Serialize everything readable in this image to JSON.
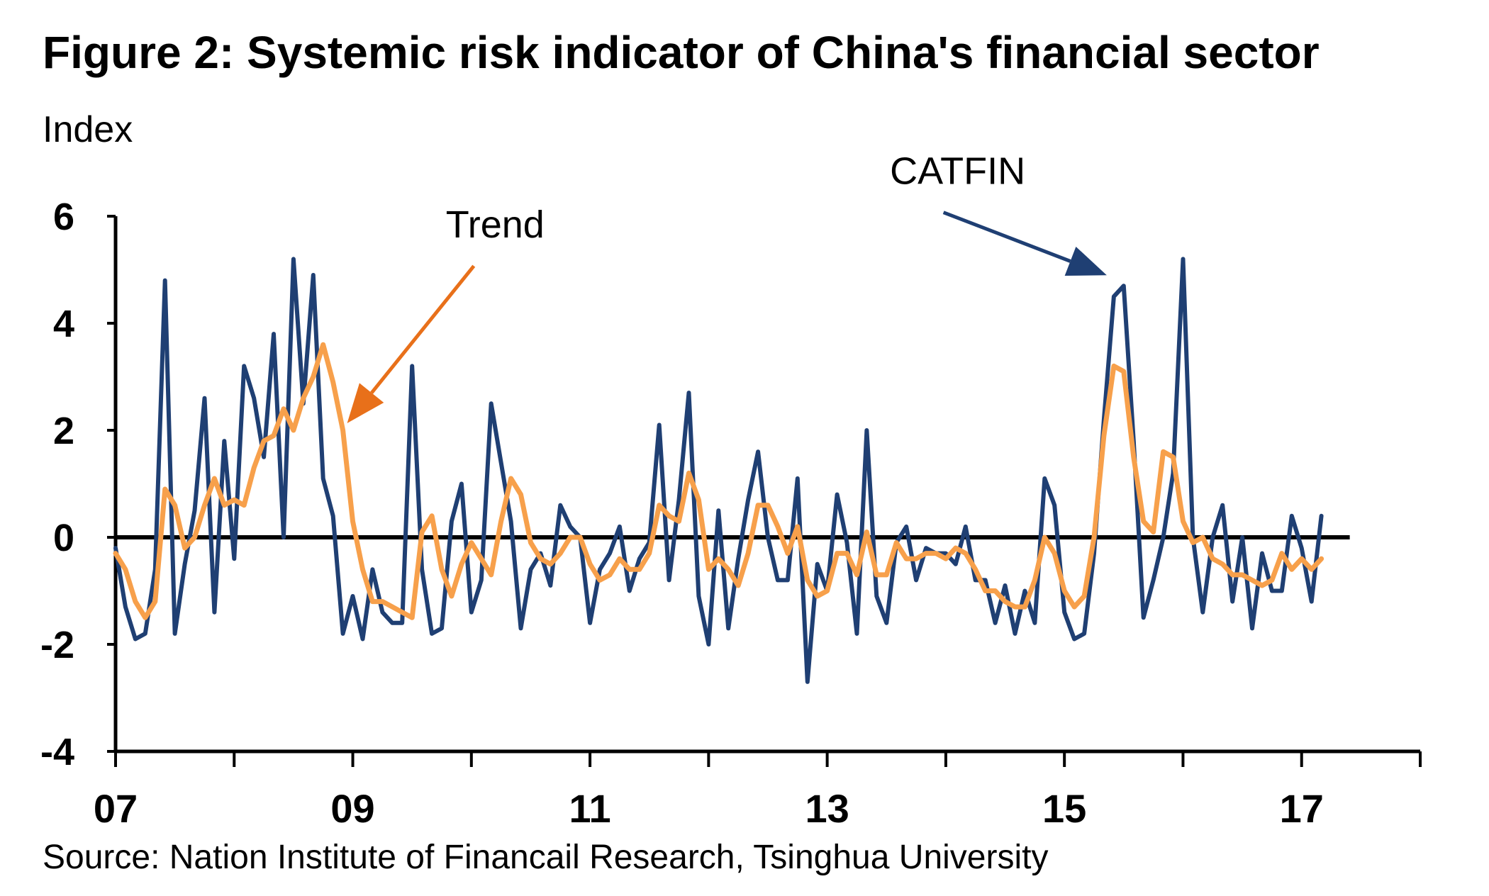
{
  "chart_data": {
    "type": "line",
    "title": "Figure 2: Systemic risk indicator of China's financial sector",
    "ylabel": "Index",
    "source": "Source: Nation Institute of Financail Research, Tsinghua University",
    "ylim": [
      -4,
      6
    ],
    "yticks": [
      -4,
      -2,
      0,
      2,
      4,
      6
    ],
    "ytick_labels": [
      "-4",
      "-2",
      "0",
      "2",
      "4",
      "6"
    ],
    "xlim": [
      2007.0,
      2018.0
    ],
    "xticks": [
      2007,
      2009,
      2011,
      2013,
      2015,
      2017
    ],
    "xtick_labels": [
      "07",
      "09",
      "11",
      "13",
      "15",
      "17"
    ],
    "x_minor_ticks": [
      2008,
      2010,
      2012,
      2014,
      2016,
      2018
    ],
    "zero_line": true,
    "grid": false,
    "x_start": 2007.0,
    "x_step_months": 1,
    "series": [
      {
        "name": "CATFIN",
        "color": "#1f3f73",
        "values": [
          -0.2,
          -1.3,
          -1.9,
          -1.8,
          -0.6,
          4.8,
          -1.8,
          -0.5,
          0.5,
          2.6,
          -1.4,
          1.8,
          -0.4,
          3.2,
          2.6,
          1.5,
          3.8,
          0.0,
          5.2,
          2.5,
          4.9,
          1.1,
          0.4,
          -1.8,
          -1.1,
          -1.9,
          -0.6,
          -1.4,
          -1.6,
          -1.6,
          3.2,
          -0.6,
          -1.8,
          -1.7,
          0.3,
          1.0,
          -1.4,
          -0.8,
          2.5,
          1.4,
          0.3,
          -1.7,
          -0.6,
          -0.3,
          -0.9,
          0.6,
          0.2,
          0.0,
          -1.6,
          -0.6,
          -0.3,
          0.2,
          -1.0,
          -0.4,
          -0.1,
          2.1,
          -0.8,
          0.7,
          2.7,
          -1.1,
          -2.0,
          0.5,
          -1.7,
          -0.4,
          0.7,
          1.6,
          0.0,
          -0.8,
          -0.8,
          1.1,
          -2.7,
          -0.5,
          -1.0,
          0.8,
          -0.1,
          -1.8,
          2.0,
          -1.1,
          -1.6,
          -0.1,
          0.2,
          -0.8,
          -0.2,
          -0.3,
          -0.3,
          -0.5,
          0.2,
          -0.8,
          -0.8,
          -1.6,
          -0.9,
          -1.8,
          -1.0,
          -1.6,
          1.1,
          0.6,
          -1.4,
          -1.9,
          -1.8,
          -0.3,
          2.2,
          4.5,
          4.7,
          1.8,
          -1.5,
          -0.8,
          0.0,
          1.2,
          5.2,
          0.0,
          -1.4,
          0.0,
          0.6,
          -1.2,
          0.0,
          -1.7,
          -0.3,
          -1.0,
          -1.0,
          0.4,
          -0.2,
          -1.2,
          0.4
        ]
      },
      {
        "name": "Trend",
        "color": "#f7a04b",
        "values": [
          -0.3,
          -0.6,
          -1.2,
          -1.5,
          -1.2,
          0.9,
          0.6,
          -0.2,
          0.0,
          0.6,
          1.1,
          0.6,
          0.7,
          0.6,
          1.3,
          1.8,
          1.9,
          2.4,
          2.0,
          2.6,
          3.0,
          3.6,
          2.9,
          2.0,
          0.3,
          -0.6,
          -1.2,
          -1.2,
          -1.3,
          -1.4,
          -1.5,
          0.1,
          0.4,
          -0.6,
          -1.1,
          -0.5,
          -0.1,
          -0.4,
          -0.7,
          0.3,
          1.1,
          0.8,
          -0.1,
          -0.4,
          -0.5,
          -0.3,
          0.0,
          0.0,
          -0.5,
          -0.8,
          -0.7,
          -0.4,
          -0.6,
          -0.6,
          -0.3,
          0.6,
          0.4,
          0.3,
          1.2,
          0.7,
          -0.6,
          -0.4,
          -0.6,
          -0.9,
          -0.3,
          0.6,
          0.6,
          0.2,
          -0.3,
          0.2,
          -0.8,
          -1.1,
          -1.0,
          -0.3,
          -0.3,
          -0.7,
          0.1,
          -0.7,
          -0.7,
          -0.1,
          -0.4,
          -0.4,
          -0.3,
          -0.3,
          -0.4,
          -0.2,
          -0.3,
          -0.6,
          -1.0,
          -1.0,
          -1.2,
          -1.3,
          -1.3,
          -0.8,
          0.0,
          -0.3,
          -1.0,
          -1.3,
          -1.1,
          0.0,
          1.9,
          3.2,
          3.1,
          1.5,
          0.3,
          0.1,
          1.6,
          1.5,
          0.3,
          -0.1,
          0.0,
          -0.4,
          -0.5,
          -0.7,
          -0.7,
          -0.8,
          -0.9,
          -0.8,
          -0.3,
          -0.6,
          -0.4,
          -0.6,
          -0.4
        ]
      }
    ],
    "annotations": [
      {
        "text": "Trend",
        "color": "#e8701a",
        "target_series": "Trend",
        "target_index": 23,
        "label_x": 2010.2,
        "label_y": 5.6
      },
      {
        "text": "CATFIN",
        "color": "#1f3f73",
        "target_series": "CATFIN",
        "target_index": 101,
        "label_x": 2014.1,
        "label_y": 6.6
      }
    ]
  }
}
